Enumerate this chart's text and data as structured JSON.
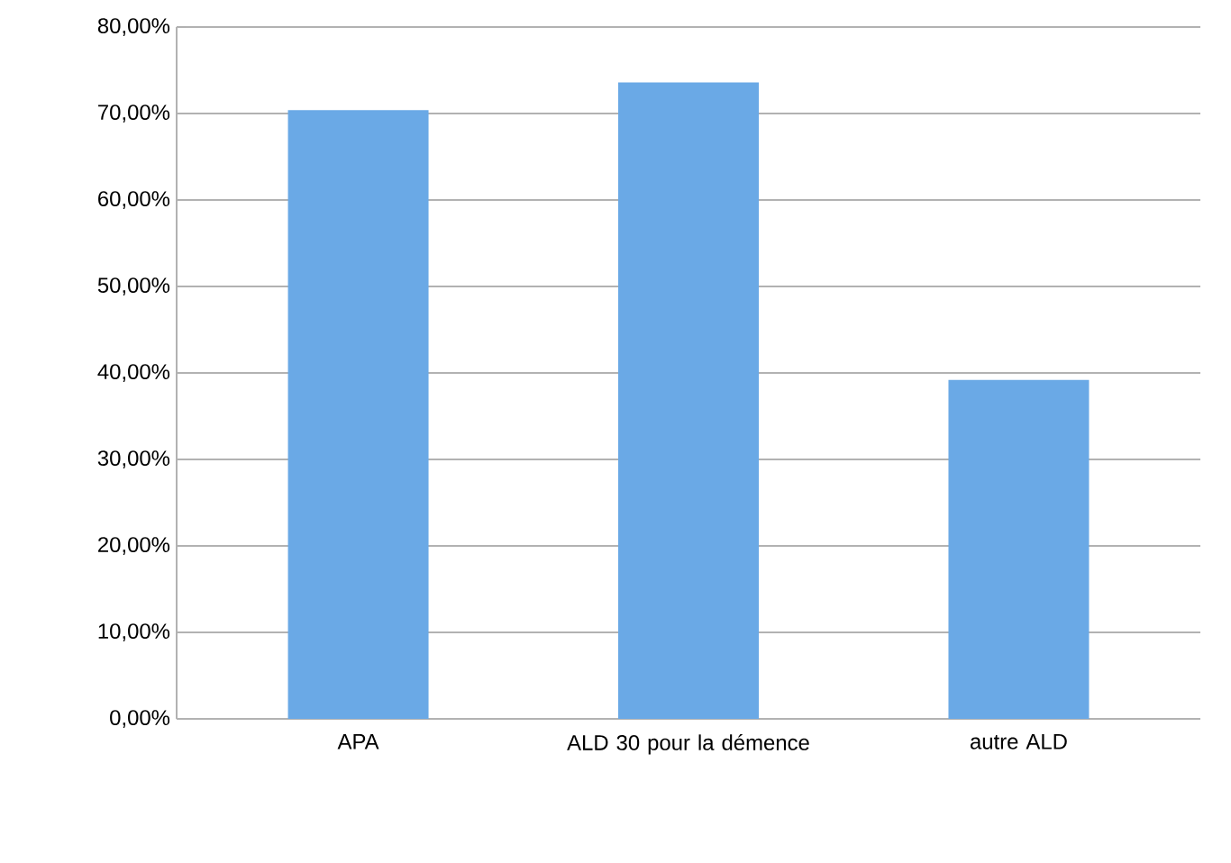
{
  "chart_data": {
    "type": "bar",
    "categories": [
      "APA",
      "ALD 30 pour la démence",
      "autre ALD"
    ],
    "values": [
      70.4,
      73.6,
      39.2
    ],
    "color": "#6aa9e6",
    "ylim": [
      0,
      80
    ],
    "yticks": [
      {
        "value": 0,
        "label": "0,00%"
      },
      {
        "value": 10,
        "label": "10,00%"
      },
      {
        "value": 20,
        "label": "20,00%"
      },
      {
        "value": 30,
        "label": "30,00%"
      },
      {
        "value": 40,
        "label": "40,00%"
      },
      {
        "value": 50,
        "label": "50,00%"
      },
      {
        "value": 60,
        "label": "60,00%"
      },
      {
        "value": 70,
        "label": "70,00%"
      },
      {
        "value": 80,
        "label": "80,00%"
      }
    ],
    "grid": "y"
  }
}
